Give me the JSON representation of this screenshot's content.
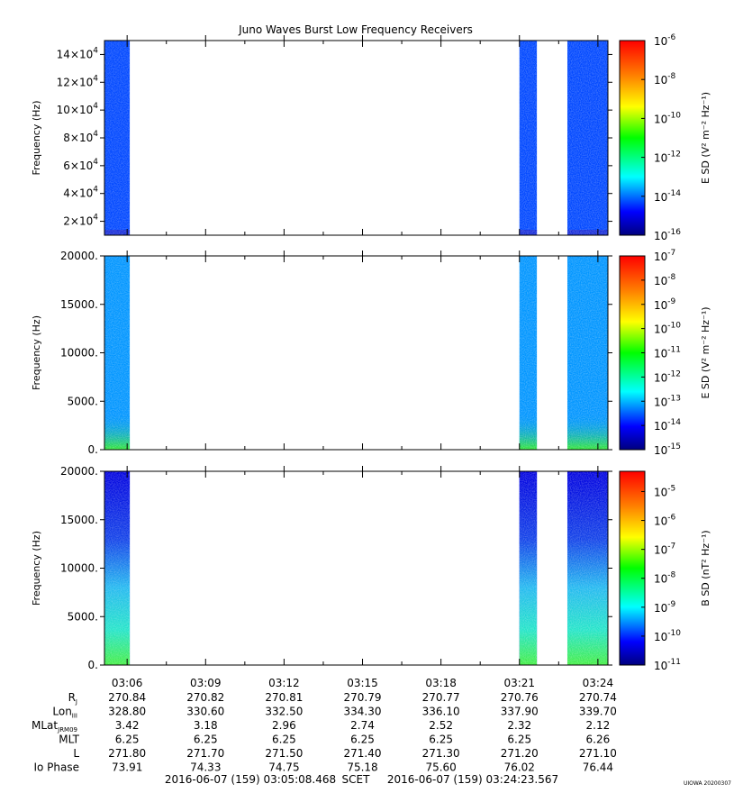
{
  "chart_data": [
    {
      "type": "heatmap",
      "title": "Juno Waves Burst Low Frequency Receivers",
      "ylabel": "Frequency (Hz)",
      "ylim": [
        10000,
        150000
      ],
      "y_ticks": [
        {
          "base": "2×10",
          "exp": "4",
          "value": 20000
        },
        {
          "base": "4×10",
          "exp": "4",
          "value": 40000
        },
        {
          "base": "6×10",
          "exp": "4",
          "value": 60000
        },
        {
          "base": "8×10",
          "exp": "4",
          "value": 80000
        },
        {
          "base": "10×10",
          "exp": "4",
          "value": 100000
        },
        {
          "base": "12×10",
          "exp": "4",
          "value": 120000
        },
        {
          "base": "14×10",
          "exp": "4",
          "value": 140000
        }
      ],
      "colorbar_label": "E SD (V² m⁻² Hz⁻¹)",
      "colorbar_log": true,
      "colorbar_range_exp": [
        -16,
        -6
      ],
      "colorbar_ticks": [
        {
          "base": "10",
          "exp": "-6",
          "value_exp": -6
        },
        {
          "base": "10",
          "exp": "-8",
          "value_exp": -8
        },
        {
          "base": "10",
          "exp": "-10",
          "value_exp": -10
        },
        {
          "base": "10",
          "exp": "-12",
          "value_exp": -12
        },
        {
          "base": "10",
          "exp": "-14",
          "value_exp": -14
        },
        {
          "base": "10",
          "exp": "-16",
          "value_exp": -16
        }
      ],
      "data_intervals": [
        {
          "start": "03:05:08",
          "end": "03:06:06",
          "level_exp": -14.3
        },
        {
          "start": "03:21:00",
          "end": "03:21:40",
          "level_exp": -14.3
        },
        {
          "start": "03:22:50",
          "end": "03:24:23",
          "level_exp": -14.3
        }
      ],
      "grid": false
    },
    {
      "type": "heatmap",
      "ylabel": "Frequency (Hz)",
      "ylim": [
        0,
        20000
      ],
      "y_ticks": [
        {
          "label": "0.",
          "value": 0
        },
        {
          "label": "5000.",
          "value": 5000
        },
        {
          "label": "10000.",
          "value": 10000
        },
        {
          "label": "15000.",
          "value": 15000
        },
        {
          "label": "20000.",
          "value": 20000
        }
      ],
      "colorbar_label": "E SD (V² m⁻² Hz⁻¹)",
      "colorbar_log": true,
      "colorbar_range_exp": [
        -15,
        -7
      ],
      "colorbar_ticks": [
        {
          "base": "10",
          "exp": "-7",
          "value_exp": -7
        },
        {
          "base": "10",
          "exp": "-8",
          "value_exp": -8
        },
        {
          "base": "10",
          "exp": "-9",
          "value_exp": -9
        },
        {
          "base": "10",
          "exp": "-10",
          "value_exp": -10
        },
        {
          "base": "10",
          "exp": "-11",
          "value_exp": -11
        },
        {
          "base": "10",
          "exp": "-12",
          "value_exp": -12
        },
        {
          "base": "10",
          "exp": "-13",
          "value_exp": -13
        },
        {
          "base": "10",
          "exp": "-14",
          "value_exp": -14
        },
        {
          "base": "10",
          "exp": "-15",
          "value_exp": -15
        }
      ],
      "data_intervals": [
        {
          "start": "03:05:08",
          "end": "03:06:06",
          "level_exp": -13.2
        },
        {
          "start": "03:21:00",
          "end": "03:21:40",
          "level_exp": -13.2
        },
        {
          "start": "03:22:50",
          "end": "03:24:23",
          "level_exp": -13.2
        }
      ],
      "grid": false
    },
    {
      "type": "heatmap",
      "ylabel": "Frequency (Hz)",
      "ylim": [
        0,
        20000
      ],
      "y_ticks": [
        {
          "label": "0.",
          "value": 0
        },
        {
          "label": "5000.",
          "value": 5000
        },
        {
          "label": "10000.",
          "value": 10000
        },
        {
          "label": "15000.",
          "value": 15000
        },
        {
          "label": "20000.",
          "value": 20000
        }
      ],
      "colorbar_label": "B SD (nT² Hz⁻¹)",
      "colorbar_log": true,
      "colorbar_range_exp": [
        -11,
        -4.3
      ],
      "colorbar_ticks": [
        {
          "base": "10",
          "exp": "-5",
          "value_exp": -5
        },
        {
          "base": "10",
          "exp": "-6",
          "value_exp": -6
        },
        {
          "base": "10",
          "exp": "-7",
          "value_exp": -7
        },
        {
          "base": "10",
          "exp": "-8",
          "value_exp": -8
        },
        {
          "base": "10",
          "exp": "-9",
          "value_exp": -9
        },
        {
          "base": "10",
          "exp": "-10",
          "value_exp": -10
        },
        {
          "base": "10",
          "exp": "-11",
          "value_exp": -11
        }
      ],
      "data_intervals": [
        {
          "start": "03:05:08",
          "end": "03:06:06",
          "level_exp": -10.4
        },
        {
          "start": "03:21:00",
          "end": "03:21:40",
          "level_exp": -10.4
        },
        {
          "start": "03:22:50",
          "end": "03:24:23",
          "level_exp": -10.4
        }
      ],
      "grid": false
    }
  ],
  "x_axis": {
    "range": [
      "03:05:08",
      "03:24:23"
    ],
    "ticks": [
      "03:06",
      "03:09",
      "03:12",
      "03:15",
      "03:18",
      "03:21",
      "03:24"
    ]
  },
  "ephemeris": {
    "rows": [
      {
        "label": "R",
        "sub": "J",
        "values": [
          "270.84",
          "270.82",
          "270.81",
          "270.79",
          "270.77",
          "270.76",
          "270.74"
        ]
      },
      {
        "label": "Lon",
        "sub": "III",
        "values": [
          "328.80",
          "330.60",
          "332.50",
          "334.30",
          "336.10",
          "337.90",
          "339.70"
        ]
      },
      {
        "label": "MLat",
        "sub": "JRM09",
        "values": [
          "3.42",
          "3.18",
          "2.96",
          "2.74",
          "2.52",
          "2.32",
          "2.12"
        ]
      },
      {
        "label": "MLT",
        "sub": "",
        "values": [
          "6.25",
          "6.25",
          "6.25",
          "6.25",
          "6.25",
          "6.25",
          "6.26"
        ]
      },
      {
        "label": "L",
        "sub": "",
        "values": [
          "271.80",
          "271.70",
          "271.50",
          "271.40",
          "271.30",
          "271.20",
          "271.10"
        ]
      },
      {
        "label": "Io Phase",
        "sub": "",
        "values": [
          "73.91",
          "74.33",
          "74.75",
          "75.18",
          "75.60",
          "76.02",
          "76.44"
        ]
      }
    ]
  },
  "footer": {
    "start": "2016-06-07 (159) 03:05:08.468",
    "scet": "SCET",
    "end": "2016-06-07 (159) 03:24:23.567",
    "stamp": "UIOWA 20200307"
  }
}
